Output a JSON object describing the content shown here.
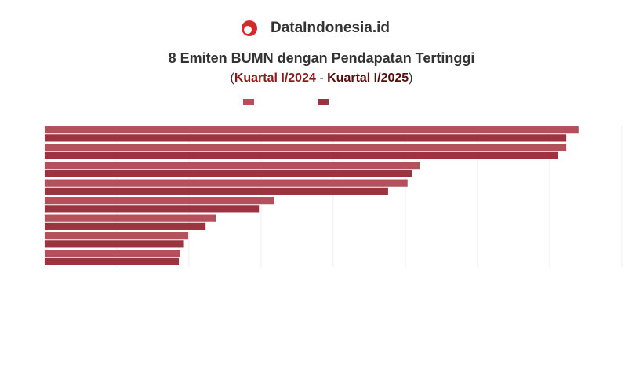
{
  "header": {
    "brand": "DataIndonesia.id"
  },
  "chart_data": {
    "type": "bar",
    "orientation": "horizontal",
    "title": "8 Emiten BUMN dengan Pendapatan Tertinggi",
    "subtitle": {
      "open": "(",
      "from": "Kuartal I/2024",
      "sep": "-",
      "to": "Kuartal I/2025",
      "close": ")"
    },
    "categories": [
      null,
      null,
      null,
      null,
      null,
      null,
      null,
      null
    ],
    "series": [
      {
        "color": "#b4505c",
        "values": [
          7.4,
          7.23,
          5.2,
          5.03,
          3.18,
          2.37,
          1.99,
          1.88
        ]
      },
      {
        "color": "#9c3440",
        "values": [
          7.23,
          7.12,
          5.09,
          4.76,
          2.97,
          2.23,
          1.93,
          1.86
        ]
      }
    ],
    "xlim": [
      0,
      8
    ],
    "xticks": [
      0,
      1,
      2,
      3,
      4,
      5,
      6,
      7,
      8
    ],
    "grid": true
  }
}
